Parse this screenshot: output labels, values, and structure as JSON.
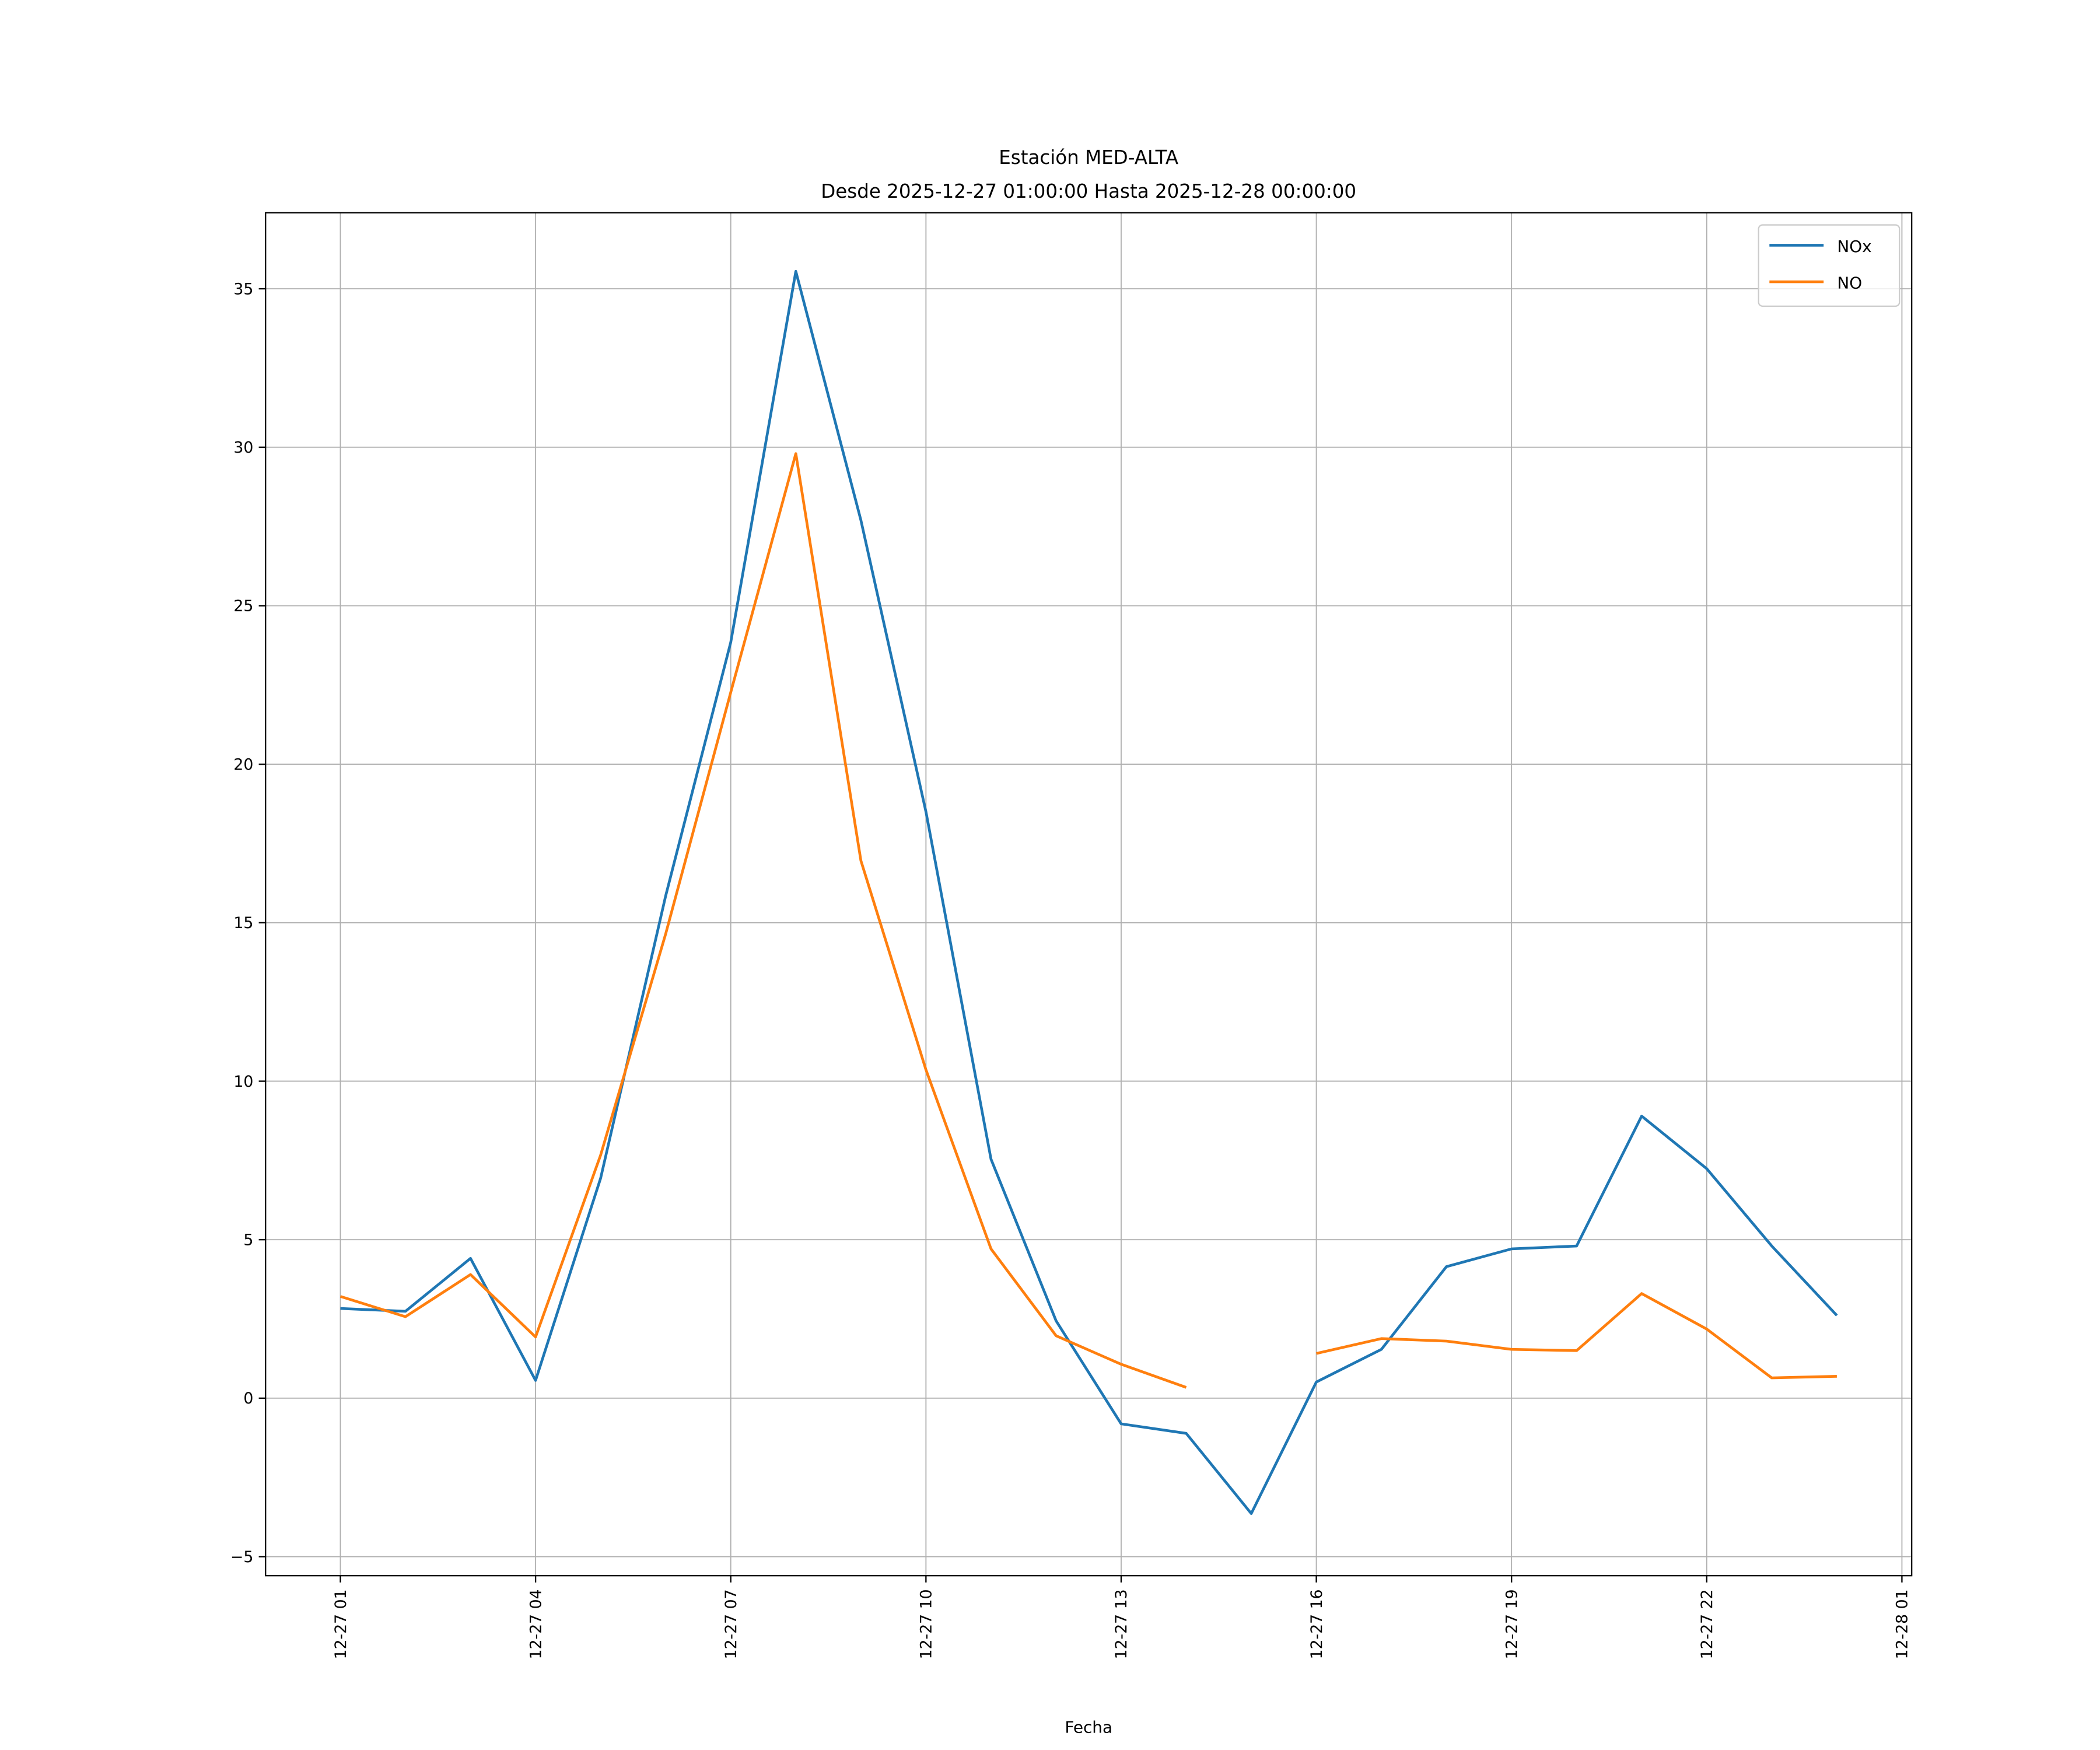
{
  "chart_data": {
    "type": "line",
    "title": "Estación MED-ALTA",
    "subtitle": "Desde 2025-12-27 01:00:00 Hasta 2025-12-28 00:00:00",
    "xlabel": "Fecha",
    "ylabel": "",
    "x": [
      "2025-12-27 01:00",
      "2025-12-27 02:00",
      "2025-12-27 03:00",
      "2025-12-27 04:00",
      "2025-12-27 05:00",
      "2025-12-27 06:00",
      "2025-12-27 07:00",
      "2025-12-27 08:00",
      "2025-12-27 09:00",
      "2025-12-27 10:00",
      "2025-12-27 11:00",
      "2025-12-27 12:00",
      "2025-12-27 13:00",
      "2025-12-27 14:00",
      "2025-12-27 15:00",
      "2025-12-27 16:00",
      "2025-12-27 17:00",
      "2025-12-27 18:00",
      "2025-12-27 19:00",
      "2025-12-27 20:00",
      "2025-12-27 21:00",
      "2025-12-27 22:00",
      "2025-12-27 23:00",
      "2025-12-28 00:00"
    ],
    "series": [
      {
        "name": "NOx",
        "color": "#1f77b4",
        "values": [
          2.83,
          2.74,
          4.41,
          0.56,
          6.94,
          15.85,
          23.85,
          35.55,
          27.7,
          18.5,
          7.54,
          2.44,
          -0.81,
          -1.11,
          -3.64,
          0.51,
          1.54,
          4.15,
          4.71,
          4.8,
          8.9,
          7.24,
          4.8,
          2.61
        ]
      },
      {
        "name": "NO",
        "color": "#ff7f0e",
        "values": [
          3.21,
          2.57,
          3.9,
          1.93,
          7.67,
          14.65,
          22.27,
          29.8,
          16.96,
          10.36,
          4.71,
          1.97,
          1.07,
          0.34,
          null,
          1.41,
          1.88,
          1.8,
          1.54,
          1.5,
          3.3,
          2.18,
          0.64,
          0.69
        ]
      }
    ],
    "xticks": [
      {
        "label": "12-27 01",
        "value": "2025-12-27 01:00"
      },
      {
        "label": "12-27 04",
        "value": "2025-12-27 04:00"
      },
      {
        "label": "12-27 07",
        "value": "2025-12-27 07:00"
      },
      {
        "label": "12-27 10",
        "value": "2025-12-27 10:00"
      },
      {
        "label": "12-27 13",
        "value": "2025-12-27 13:00"
      },
      {
        "label": "12-27 16",
        "value": "2025-12-27 16:00"
      },
      {
        "label": "12-27 19",
        "value": "2025-12-27 19:00"
      },
      {
        "label": "12-27 22",
        "value": "2025-12-27 22:00"
      },
      {
        "label": "12-28 01",
        "value": "2025-12-28 01:00"
      }
    ],
    "yticks": [
      -5,
      0,
      5,
      10,
      15,
      20,
      25,
      30,
      35
    ],
    "xlim": [
      "2025-12-26 23:51",
      "2025-12-28 01:09"
    ],
    "ylim": [
      -5.6,
      37.4
    ],
    "grid": true,
    "legend": "top-right"
  }
}
